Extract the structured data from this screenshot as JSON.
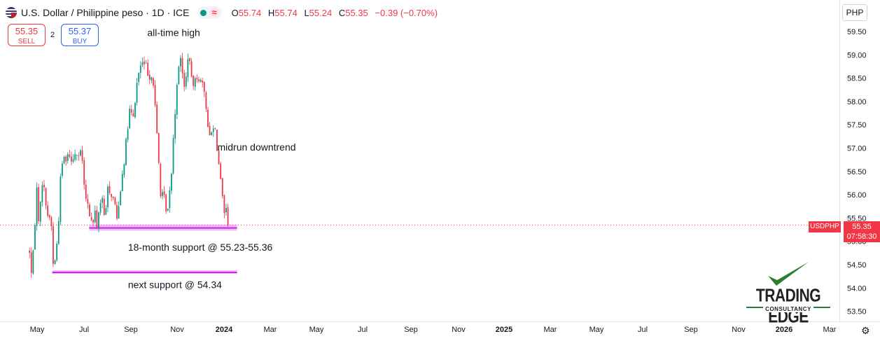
{
  "header": {
    "symbol_title": "U.S. Dollar / Philippine peso · 1D · ICE",
    "ohlc": {
      "o_label": "O",
      "o": "55.74",
      "h_label": "H",
      "h": "55.74",
      "l_label": "L",
      "l": "55.24",
      "c_label": "C",
      "c": "55.35",
      "change": "−0.39 (−0.70%)"
    },
    "indicator_icon": "wave-icon",
    "status_color": "#089981"
  },
  "trade": {
    "sell_price": "55.35",
    "sell_label": "SELL",
    "spread": "2",
    "buy_price": "55.37",
    "buy_label": "BUY"
  },
  "price_axis": {
    "currency": "PHP",
    "symbol_tag": "USDPHP",
    "last_price": "55.35",
    "countdown": "07:58:30",
    "tag_color": "#f23645"
  },
  "logo": {
    "name": "TRADING EDGE",
    "sub": "CONSULTANCY",
    "accent": "#2e7d32"
  },
  "chart_data": {
    "type": "candlestick",
    "y_ticks": [
      "59.50",
      "59.00",
      "58.50",
      "58.00",
      "57.50",
      "57.00",
      "56.50",
      "56.00",
      "55.50",
      "55.00",
      "54.50",
      "54.00",
      "53.50"
    ],
    "ylim": [
      53.5,
      59.5
    ],
    "x_ticks": [
      "May",
      "Jul",
      "Sep",
      "Nov",
      "2024",
      "Mar",
      "May",
      "Jul",
      "Sep",
      "Nov",
      "2025",
      "Mar",
      "May",
      "Jul",
      "Sep",
      "Nov",
      "2026",
      "Mar"
    ],
    "bold_x_ticks": [
      "2024",
      "2025",
      "2026"
    ],
    "x_range": [
      "2023-04",
      "2026-03"
    ],
    "grid": false,
    "up_color": "#089981",
    "down_color": "#f23645",
    "last_price": 55.35,
    "price_path": [
      {
        "date": "2023-04-01",
        "price": 54.8
      },
      {
        "date": "2023-04-10",
        "price": 54.2
      },
      {
        "date": "2023-04-22",
        "price": 55.3
      },
      {
        "date": "2023-04-27",
        "price": 56.45
      },
      {
        "date": "2023-05-05",
        "price": 55.5
      },
      {
        "date": "2023-05-12",
        "price": 55.6
      },
      {
        "date": "2023-05-22",
        "price": 56.35
      },
      {
        "date": "2023-06-05",
        "price": 55.8
      },
      {
        "date": "2023-06-15",
        "price": 55.5
      },
      {
        "date": "2023-06-25",
        "price": 55.5
      },
      {
        "date": "2023-07-05",
        "price": 54.4
      },
      {
        "date": "2023-07-15",
        "price": 54.7
      },
      {
        "date": "2023-07-25",
        "price": 55.5
      },
      {
        "date": "2023-08-05",
        "price": 56.7
      },
      {
        "date": "2023-08-20",
        "price": 56.8
      },
      {
        "date": "2023-09-01",
        "price": 56.9
      },
      {
        "date": "2023-09-15",
        "price": 56.8
      },
      {
        "date": "2023-10-01",
        "price": 56.9
      },
      {
        "date": "2023-10-15",
        "price": 56.8
      },
      {
        "date": "2023-10-25",
        "price": 56.9
      },
      {
        "date": "2023-11-05",
        "price": 56.0
      },
      {
        "date": "2023-11-20",
        "price": 55.7
      },
      {
        "date": "2023-12-05",
        "price": 55.35
      },
      {
        "date": "2023-12-15",
        "price": 55.6
      },
      {
        "date": "2023-12-25",
        "price": 55.35
      },
      {
        "date": "2024-01-10",
        "price": 56.0
      },
      {
        "date": "2024-01-25",
        "price": 55.4
      },
      {
        "date": "2024-02-05",
        "price": 56.2
      },
      {
        "date": "2024-02-20",
        "price": 56.0
      },
      {
        "date": "2024-03-05",
        "price": 55.8
      },
      {
        "date": "2024-03-12",
        "price": 55.45
      },
      {
        "date": "2024-03-18",
        "price": 55.8
      },
      {
        "date": "2024-04-01",
        "price": 56.4
      },
      {
        "date": "2024-04-15",
        "price": 57.0
      },
      {
        "date": "2024-05-01",
        "price": 57.8
      },
      {
        "date": "2024-05-15",
        "price": 57.6
      },
      {
        "date": "2024-06-01",
        "price": 58.5
      },
      {
        "date": "2024-06-15",
        "price": 58.8
      },
      {
        "date": "2024-07-01",
        "price": 58.8
      },
      {
        "date": "2024-07-15",
        "price": 58.6
      },
      {
        "date": "2024-08-01",
        "price": 58.5
      },
      {
        "date": "2024-08-15",
        "price": 57.5
      },
      {
        "date": "2024-09-01",
        "price": 56.0
      },
      {
        "date": "2024-09-15",
        "price": 55.9
      },
      {
        "date": "2024-09-28",
        "price": 55.6
      },
      {
        "date": "2024-10-10",
        "price": 56.2
      },
      {
        "date": "2024-10-25",
        "price": 57.6
      },
      {
        "date": "2024-11-10",
        "price": 58.8
      },
      {
        "date": "2024-11-20",
        "price": 59.0
      },
      {
        "date": "2024-12-01",
        "price": 58.2
      },
      {
        "date": "2024-12-10",
        "price": 58.5
      },
      {
        "date": "2024-12-20",
        "price": 59.1
      },
      {
        "date": "2025-01-05",
        "price": 58.2
      },
      {
        "date": "2025-01-15",
        "price": 58.6
      },
      {
        "date": "2025-02-01",
        "price": 58.5
      },
      {
        "date": "2025-02-15",
        "price": 58.3
      },
      {
        "date": "2025-03-01",
        "price": 57.8
      },
      {
        "date": "2025-03-15",
        "price": 57.2
      },
      {
        "date": "2025-04-01",
        "price": 57.6
      },
      {
        "date": "2025-04-10",
        "price": 57.1
      },
      {
        "date": "2025-04-25",
        "price": 56.5
      },
      {
        "date": "2025-05-08",
        "price": 55.6
      },
      {
        "date": "2025-05-15",
        "price": 55.8
      },
      {
        "date": "2025-05-22",
        "price": 55.6
      },
      {
        "date": "2025-05-26",
        "price": 55.35
      }
    ],
    "lines": [
      {
        "label": "18-month support @ 55.23-55.36",
        "from": 55.23,
        "to": 55.36,
        "x_start": "2023-11-23",
        "x_end": "2025-06-30",
        "color": "#e040fb"
      },
      {
        "label": "next support @ 54.34",
        "from": 54.3,
        "to": 54.38,
        "x_start": "2023-06-30",
        "x_end": "2025-06-30",
        "color": "#e040fb"
      }
    ],
    "annotations": [
      {
        "text": "all-time high",
        "x": "2024-12-03",
        "y": 59.4
      },
      {
        "text": "midrun downtrend",
        "x": "2025-05-22",
        "y": 56.95
      },
      {
        "text": "18-month support @ 55.23-55.36",
        "x": "2024-09-24",
        "y": 54.8
      },
      {
        "text": "next support @ 54.34",
        "x": "2024-09-24",
        "y": 54.0
      }
    ]
  }
}
